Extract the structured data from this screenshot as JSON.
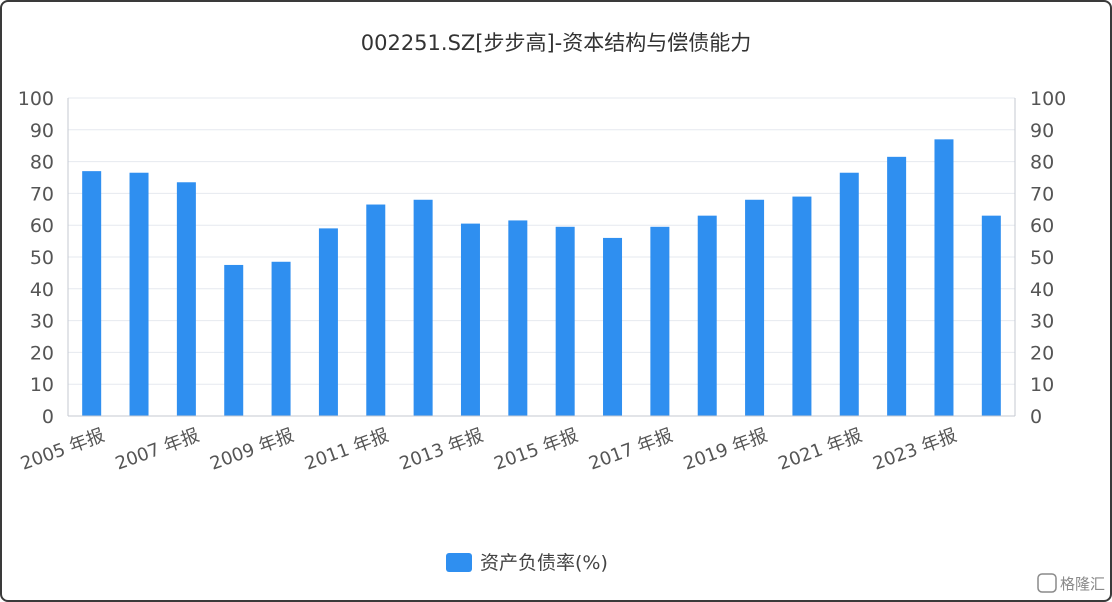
{
  "chart_data": {
    "type": "bar",
    "title": "002251.SZ[步步高]-资本结构与偿债能力",
    "categories": [
      "2005 年报",
      "2006 年报",
      "2007 年报",
      "2008 年报",
      "2009 年报",
      "2010 年报",
      "2011 年报",
      "2012 年报",
      "2013 年报",
      "2014 年报",
      "2015 年报",
      "2016 年报",
      "2017 年报",
      "2018 年报",
      "2019 年报",
      "2020 年报",
      "2021 年报",
      "2022 年报",
      "2023 年报",
      "2024 年报"
    ],
    "x_tick_labels": [
      "2005 年报",
      "2007 年报",
      "2009 年报",
      "2011 年报",
      "2013 年报",
      "2015 年报",
      "2017 年报",
      "2019 年报",
      "2021 年报",
      "2023 年报"
    ],
    "series": [
      {
        "name": "资产负债率(%)",
        "values": [
          77,
          76.5,
          73.5,
          47.5,
          48.5,
          59,
          66.5,
          68,
          60.5,
          61.5,
          59.5,
          56,
          59.5,
          63,
          68,
          69,
          76.5,
          81.5,
          87,
          63
        ]
      }
    ],
    "ylim": [
      0,
      100
    ],
    "y_ticks": [
      0,
      10,
      20,
      30,
      40,
      50,
      60,
      70,
      80,
      90,
      100
    ],
    "y_ticks_right": [
      0,
      10,
      20,
      30,
      40,
      50,
      60,
      70,
      80,
      90,
      100
    ],
    "legend_position": "bottom",
    "grid": true,
    "bar_color": "#2f8ff0"
  },
  "watermark": "格隆汇"
}
